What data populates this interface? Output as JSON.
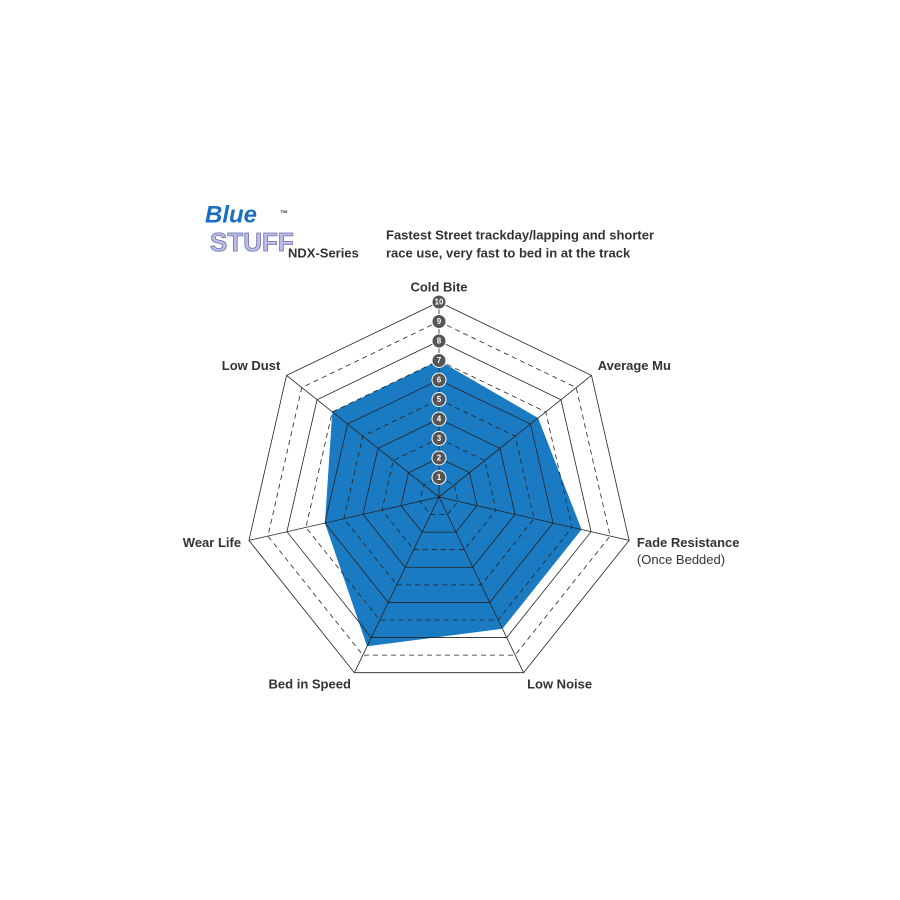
{
  "chart_data": {
    "type": "radar",
    "logo": {
      "line1": "Blue",
      "line2": "STUFF",
      "mark": "™"
    },
    "title": "NDX-Series",
    "subtitle": [
      "Fastest Street trackday/lapping and shorter",
      "race use, very fast to bed in at the track"
    ],
    "categories": [
      "Cold Bite",
      "Average Mu",
      "Fade Resistance",
      "Low Noise",
      "Bed in Speed",
      "Wear Life",
      "Low Dust"
    ],
    "annotation": "(Once Bedded)",
    "values": [
      7,
      6.5,
      7.5,
      7.5,
      8.5,
      6,
      7
    ],
    "color": "#1b7bc2",
    "rlim": [
      0,
      10
    ],
    "rticks": [
      1,
      2,
      3,
      4,
      5,
      6,
      7,
      8,
      9,
      10
    ]
  }
}
